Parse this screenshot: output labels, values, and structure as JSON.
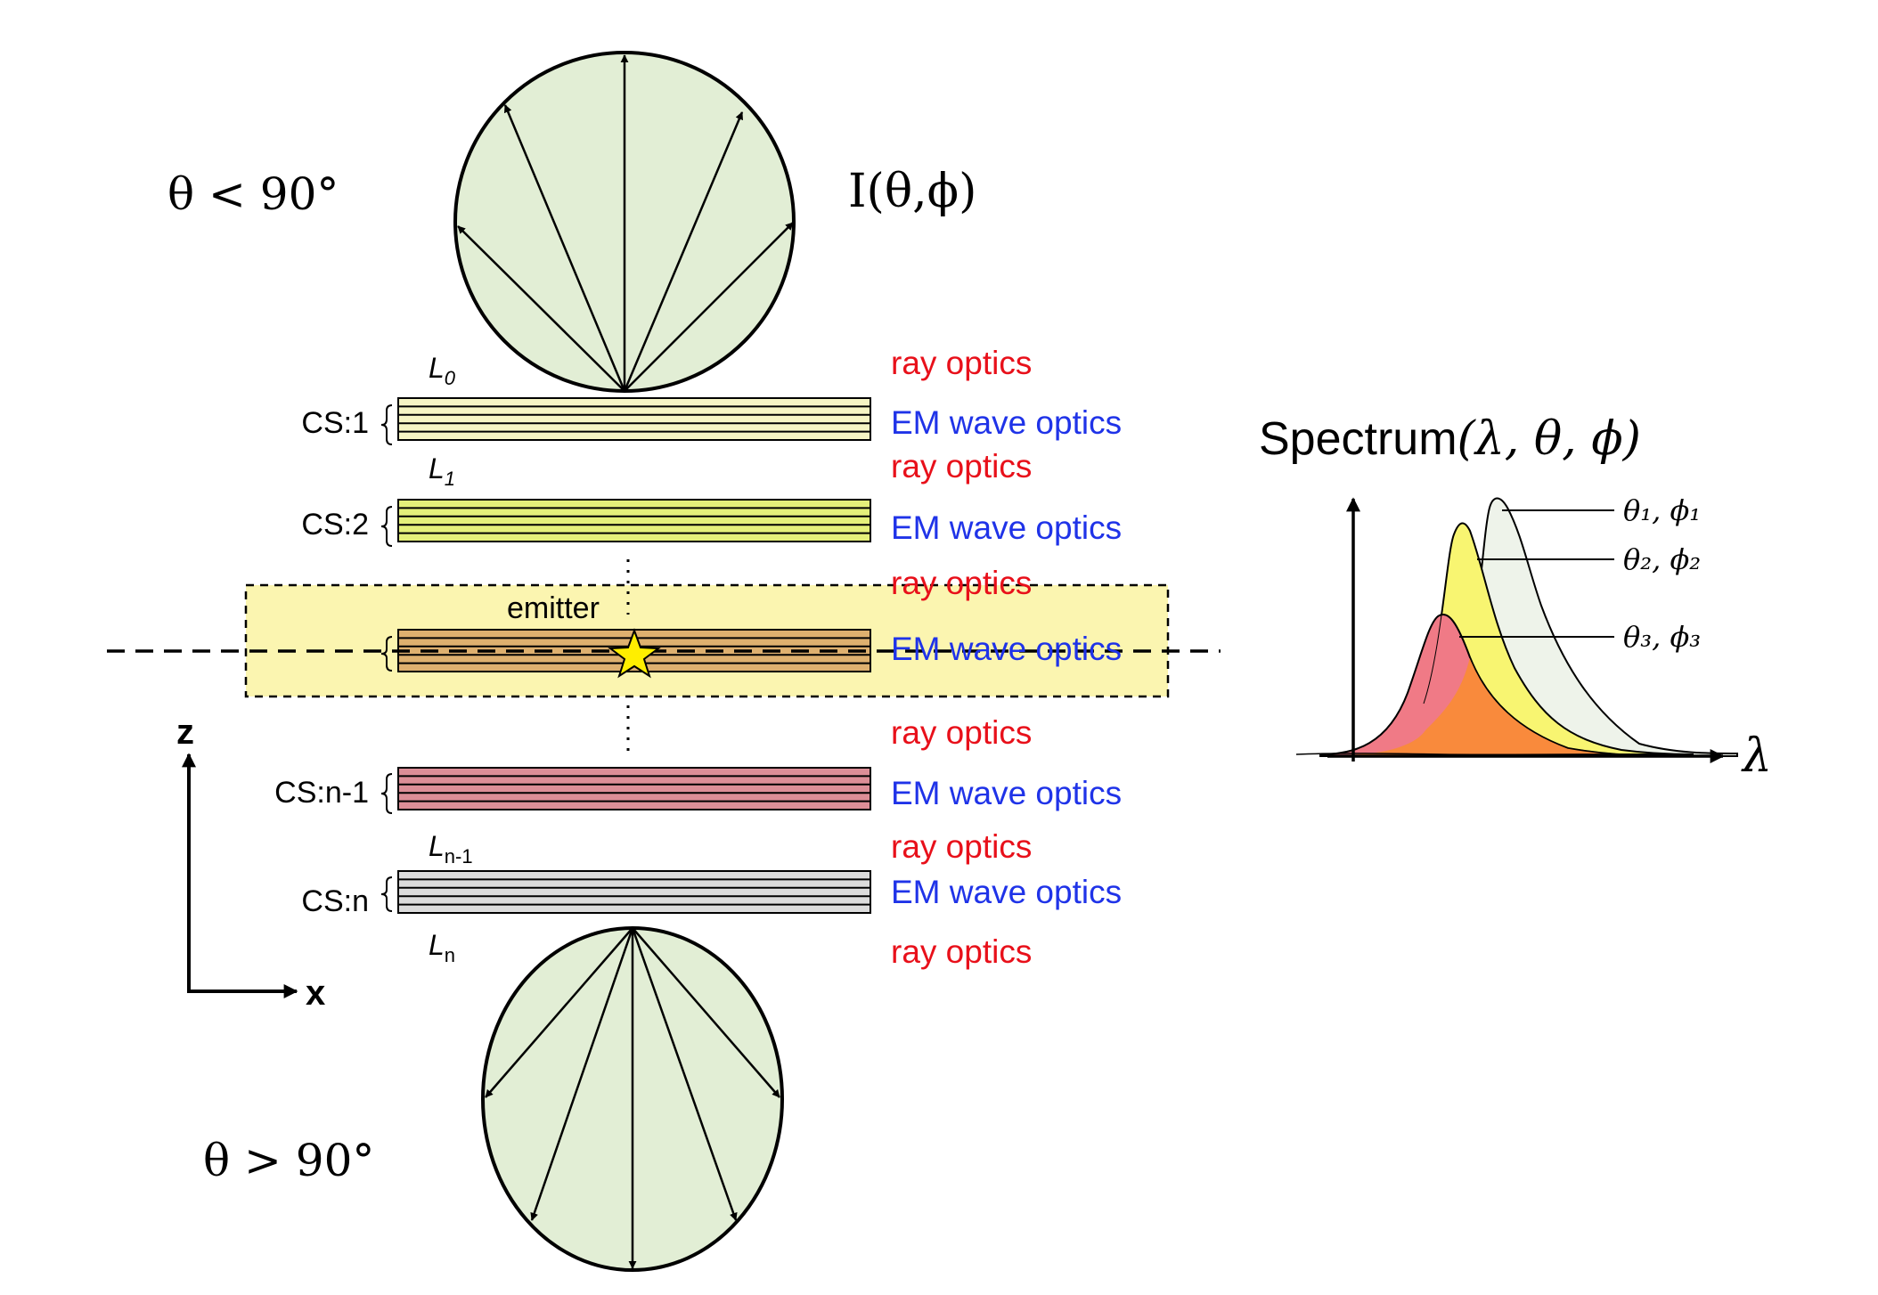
{
  "angles": {
    "upper_condition": "θ < 90°",
    "lower_condition": "θ > 90°",
    "intensity": "I(θ,ϕ)"
  },
  "layers": {
    "L0": "L",
    "L0_sub": "0",
    "L1": "L",
    "L1_sub": "1",
    "Ln1": "L",
    "Ln1_sub": "n-1",
    "Ln": "L",
    "Ln_sub": "n",
    "cs1": "CS:1",
    "cs2": "CS:2",
    "csn1": "CS:n-1",
    "csn": "CS:n",
    "emitter": "emitter",
    "dots1": "⋮",
    "dots2": "⋮"
  },
  "optics": {
    "ray": "ray optics",
    "em": "EM wave optics",
    "ray_color": "#e8101a",
    "em_color": "#1f33e8"
  },
  "axes": {
    "z": "z",
    "x": "x"
  },
  "spectrum": {
    "title": "Spectrum",
    "title_args": "(λ, θ, ϕ)",
    "lambda": "λ",
    "curve1": "θ₁, ϕ₁",
    "curve2": "θ₂, ϕ₂",
    "curve3": "θ₃, ϕ₃"
  },
  "colors": {
    "lobe_fill": "#e2eed5",
    "cs1": "#f6f5c4",
    "cs2": "#e4f07a",
    "emitter_layer": "#deb06f",
    "emitter_box": "#fbf5b0",
    "csn1": "#dc8e97",
    "csn": "#dcdcdc",
    "star": "#ffee00",
    "curve1_fill": "#eef3ea",
    "curve2_fill": "#f8f571",
    "curve3_fill": "#f07a86",
    "overlap_fill": "#f98a3c"
  }
}
